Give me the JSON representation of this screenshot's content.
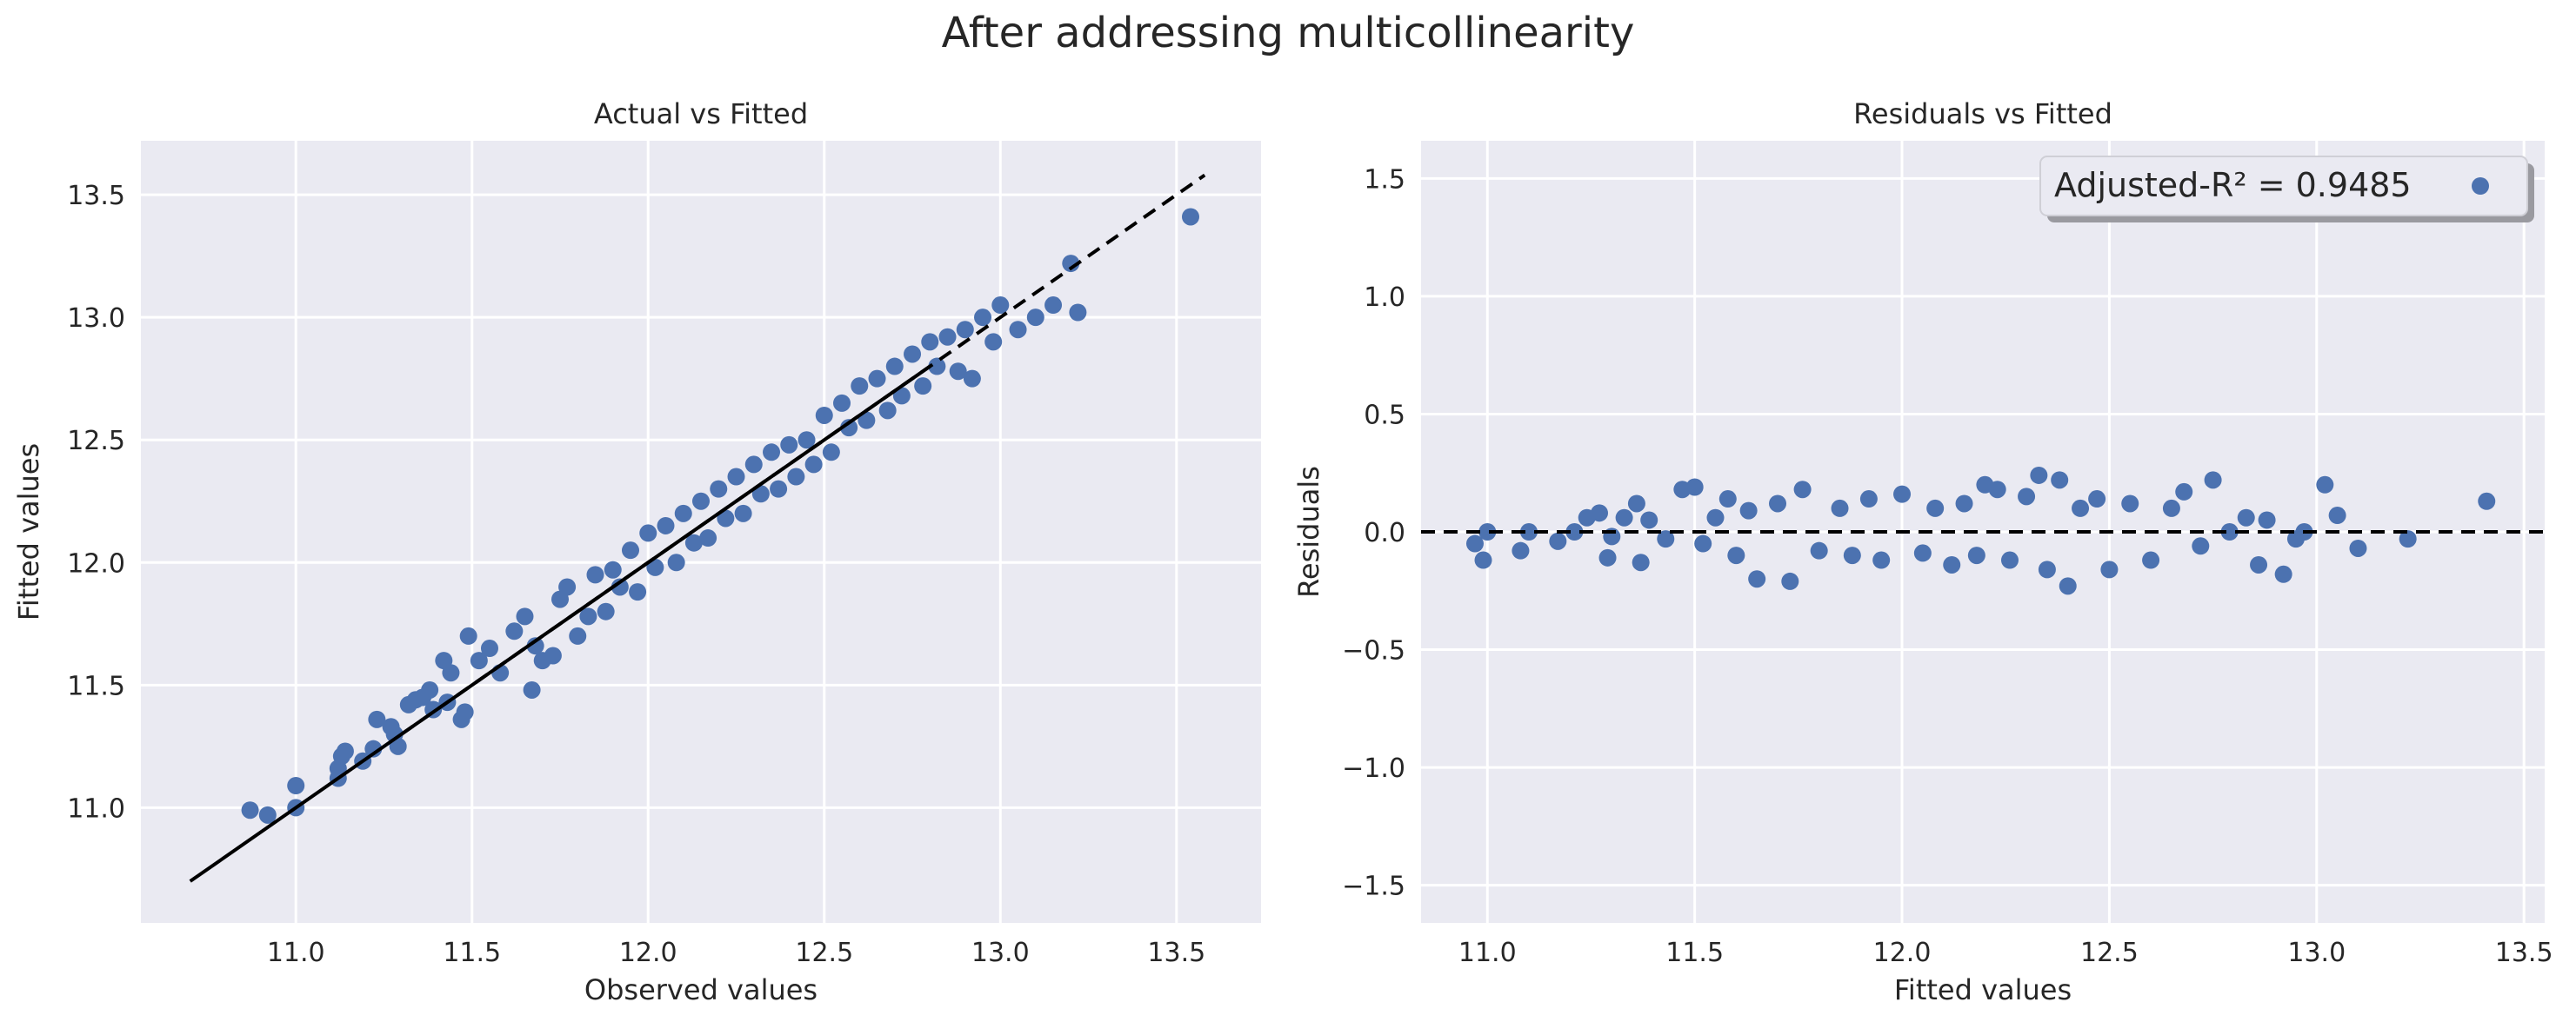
{
  "figure": {
    "suptitle": "After addressing multicollinearity"
  },
  "colors": {
    "panel_bg": "#EAEAF2",
    "grid": "#FFFFFF",
    "point": "#4C72B0",
    "line": "#000000",
    "text": "#262626"
  },
  "chart_data": [
    {
      "type": "scatter",
      "title": "Actual vs Fitted",
      "xlabel": "Observed values",
      "ylabel": "Fitted values",
      "xlim": [
        10.56,
        13.74
      ],
      "ylim": [
        10.53,
        13.72
      ],
      "xticks": [
        11.0,
        11.5,
        12.0,
        12.5,
        13.0,
        13.5
      ],
      "yticks": [
        11.0,
        11.5,
        12.0,
        12.5,
        13.0,
        13.5
      ],
      "tick_labels_x": [
        "11.0",
        "11.5",
        "12.0",
        "12.5",
        "13.0",
        "13.5"
      ],
      "tick_labels_y": [
        "11.0",
        "11.5",
        "12.0",
        "12.5",
        "13.0",
        "13.5"
      ],
      "grid": true,
      "points": [
        [
          10.87,
          10.99
        ],
        [
          10.92,
          10.97
        ],
        [
          11.0,
          11.0
        ],
        [
          11.0,
          11.09
        ],
        [
          11.12,
          11.12
        ],
        [
          11.12,
          11.16
        ],
        [
          11.13,
          11.21
        ],
        [
          11.14,
          11.23
        ],
        [
          11.19,
          11.19
        ],
        [
          11.22,
          11.24
        ],
        [
          11.23,
          11.36
        ],
        [
          11.27,
          11.33
        ],
        [
          11.28,
          11.3
        ],
        [
          11.29,
          11.25
        ],
        [
          11.32,
          11.42
        ],
        [
          11.34,
          11.44
        ],
        [
          11.36,
          11.45
        ],
        [
          11.38,
          11.48
        ],
        [
          11.39,
          11.4
        ],
        [
          11.42,
          11.6
        ],
        [
          11.43,
          11.43
        ],
        [
          11.44,
          11.55
        ],
        [
          11.47,
          11.36
        ],
        [
          11.48,
          11.39
        ],
        [
          11.49,
          11.7
        ],
        [
          11.52,
          11.6
        ],
        [
          11.55,
          11.65
        ],
        [
          11.58,
          11.55
        ],
        [
          11.62,
          11.72
        ],
        [
          11.65,
          11.78
        ],
        [
          11.67,
          11.48
        ],
        [
          11.68,
          11.66
        ],
        [
          11.7,
          11.6
        ],
        [
          11.73,
          11.62
        ],
        [
          11.75,
          11.85
        ],
        [
          11.77,
          11.9
        ],
        [
          11.8,
          11.7
        ],
        [
          11.83,
          11.78
        ],
        [
          11.85,
          11.95
        ],
        [
          11.88,
          11.8
        ],
        [
          11.9,
          11.97
        ],
        [
          11.92,
          11.9
        ],
        [
          11.95,
          12.05
        ],
        [
          11.97,
          11.88
        ],
        [
          12.0,
          12.12
        ],
        [
          12.02,
          11.98
        ],
        [
          12.05,
          12.15
        ],
        [
          12.08,
          12.0
        ],
        [
          12.1,
          12.2
        ],
        [
          12.13,
          12.08
        ],
        [
          12.15,
          12.25
        ],
        [
          12.17,
          12.1
        ],
        [
          12.2,
          12.3
        ],
        [
          12.22,
          12.18
        ],
        [
          12.25,
          12.35
        ],
        [
          12.27,
          12.2
        ],
        [
          12.3,
          12.4
        ],
        [
          12.32,
          12.28
        ],
        [
          12.35,
          12.45
        ],
        [
          12.37,
          12.3
        ],
        [
          12.4,
          12.48
        ],
        [
          12.42,
          12.35
        ],
        [
          12.45,
          12.5
        ],
        [
          12.47,
          12.4
        ],
        [
          12.5,
          12.6
        ],
        [
          12.52,
          12.45
        ],
        [
          12.55,
          12.65
        ],
        [
          12.57,
          12.55
        ],
        [
          12.6,
          12.72
        ],
        [
          12.62,
          12.58
        ],
        [
          12.65,
          12.75
        ],
        [
          12.68,
          12.62
        ],
        [
          12.7,
          12.8
        ],
        [
          12.72,
          12.68
        ],
        [
          12.75,
          12.85
        ],
        [
          12.78,
          12.72
        ],
        [
          12.8,
          12.9
        ],
        [
          12.82,
          12.8
        ],
        [
          12.85,
          12.92
        ],
        [
          12.88,
          12.78
        ],
        [
          12.9,
          12.95
        ],
        [
          12.92,
          12.75
        ],
        [
          12.95,
          13.0
        ],
        [
          12.98,
          12.9
        ],
        [
          13.0,
          13.05
        ],
        [
          13.05,
          12.95
        ],
        [
          13.1,
          13.0
        ],
        [
          13.15,
          13.05
        ],
        [
          13.2,
          13.22
        ],
        [
          13.22,
          13.02
        ],
        [
          13.54,
          13.41
        ]
      ],
      "reference_line": {
        "x": [
          10.7,
          13.58
        ],
        "y": [
          10.7,
          13.58
        ]
      }
    },
    {
      "type": "scatter",
      "title": "Residuals vs Fitted",
      "xlabel": "Fitted values",
      "ylabel": "Residuals",
      "xlim": [
        10.84,
        13.55
      ],
      "ylim": [
        -1.66,
        1.66
      ],
      "xticks": [
        11.0,
        11.5,
        12.0,
        12.5,
        13.0,
        13.5
      ],
      "yticks": [
        -1.5,
        -1.0,
        -0.5,
        0.0,
        0.5,
        1.0,
        1.5
      ],
      "tick_labels_x": [
        "11.0",
        "11.5",
        "12.0",
        "12.5",
        "13.0",
        "13.5"
      ],
      "tick_labels_y": [
        "−1.5",
        "−1.0",
        "−0.5",
        "0.0",
        "0.5",
        "1.0",
        "1.5"
      ],
      "grid": true,
      "legend": {
        "position": "top-right",
        "label": "Adjusted-R² = 0.9485"
      },
      "points": [
        [
          10.97,
          -0.05
        ],
        [
          10.99,
          -0.12
        ],
        [
          11.0,
          0.0
        ],
        [
          11.08,
          -0.08
        ],
        [
          11.1,
          0.0
        ],
        [
          11.17,
          -0.04
        ],
        [
          11.21,
          0.0
        ],
        [
          11.24,
          0.06
        ],
        [
          11.27,
          0.08
        ],
        [
          11.29,
          -0.11
        ],
        [
          11.3,
          -0.02
        ],
        [
          11.33,
          0.06
        ],
        [
          11.36,
          0.12
        ],
        [
          11.37,
          -0.13
        ],
        [
          11.39,
          0.05
        ],
        [
          11.43,
          -0.03
        ],
        [
          11.47,
          0.18
        ],
        [
          11.5,
          0.19
        ],
        [
          11.52,
          -0.05
        ],
        [
          11.55,
          0.06
        ],
        [
          11.58,
          0.14
        ],
        [
          11.6,
          -0.1
        ],
        [
          11.63,
          0.09
        ],
        [
          11.65,
          -0.2
        ],
        [
          11.7,
          0.12
        ],
        [
          11.73,
          -0.21
        ],
        [
          11.76,
          0.18
        ],
        [
          11.8,
          -0.08
        ],
        [
          11.85,
          0.1
        ],
        [
          11.88,
          -0.1
        ],
        [
          11.92,
          0.14
        ],
        [
          11.95,
          -0.12
        ],
        [
          12.0,
          0.16
        ],
        [
          12.05,
          -0.09
        ],
        [
          12.08,
          0.1
        ],
        [
          12.12,
          -0.14
        ],
        [
          12.15,
          0.12
        ],
        [
          12.18,
          -0.1
        ],
        [
          12.2,
          0.2
        ],
        [
          12.23,
          0.18
        ],
        [
          12.26,
          -0.12
        ],
        [
          12.3,
          0.15
        ],
        [
          12.33,
          0.24
        ],
        [
          12.35,
          -0.16
        ],
        [
          12.38,
          0.22
        ],
        [
          12.4,
          -0.23
        ],
        [
          12.43,
          0.1
        ],
        [
          12.47,
          0.14
        ],
        [
          12.5,
          -0.16
        ],
        [
          12.55,
          0.12
        ],
        [
          12.6,
          -0.12
        ],
        [
          12.65,
          0.1
        ],
        [
          12.68,
          0.17
        ],
        [
          12.72,
          -0.06
        ],
        [
          12.75,
          0.22
        ],
        [
          12.79,
          0.0
        ],
        [
          12.83,
          0.06
        ],
        [
          12.86,
          -0.14
        ],
        [
          12.88,
          0.05
        ],
        [
          12.92,
          -0.18
        ],
        [
          12.95,
          -0.03
        ],
        [
          12.97,
          0.0
        ],
        [
          13.02,
          0.2
        ],
        [
          13.05,
          0.07
        ],
        [
          13.1,
          -0.07
        ],
        [
          13.22,
          -0.03
        ],
        [
          13.41,
          0.13
        ]
      ],
      "reference_line": {
        "y": 0.0
      }
    }
  ]
}
